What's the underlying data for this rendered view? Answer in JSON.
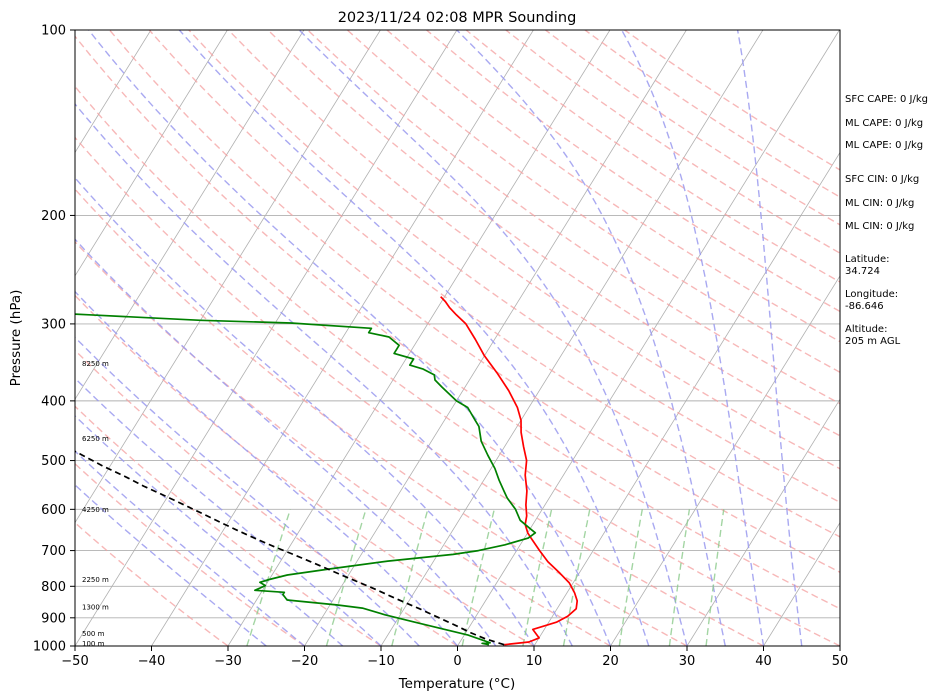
{
  "chart_data": {
    "type": "line",
    "subtype": "skew-t log-p sounding",
    "title": "2023/11/24 02:08 MPR Sounding",
    "xlabel": "Temperature (°C)",
    "ylabel": "Pressure (hPa)",
    "xlim": [
      -50,
      50
    ],
    "ylim": [
      1000,
      100
    ],
    "y_scale": "log",
    "x_ticks": [
      "−50",
      "−40",
      "−30",
      "−20",
      "−10",
      "0",
      "10",
      "20",
      "30",
      "40",
      "50"
    ],
    "y_ticks": [
      {
        "p": 100,
        "label": "100"
      },
      {
        "p": 200,
        "label": "200"
      },
      {
        "p": 300,
        "label": "300"
      },
      {
        "p": 400,
        "label": "400"
      },
      {
        "p": 500,
        "label": "500"
      },
      {
        "p": 600,
        "label": "600"
      },
      {
        "p": 700,
        "label": "700"
      },
      {
        "p": 800,
        "label": "800"
      },
      {
        "p": 900,
        "label": "900"
      },
      {
        "p": 1000,
        "label": "1000"
      }
    ],
    "height_labels": [
      {
        "p": 990,
        "label": "100 m"
      },
      {
        "p": 955,
        "label": "500 m"
      },
      {
        "p": 865,
        "label": "1300 m"
      },
      {
        "p": 780,
        "label": "2250 m"
      },
      {
        "p": 600,
        "label": "4250 m"
      },
      {
        "p": 460,
        "label": "6250 m"
      },
      {
        "p": 348,
        "label": "8250 m"
      }
    ],
    "series": [
      {
        "role": "temperature",
        "color": "#ff0000",
        "points": [
          [
            6,
            995
          ],
          [
            9,
            985
          ],
          [
            10,
            970
          ],
          [
            9,
            950
          ],
          [
            8.5,
            940
          ],
          [
            9.5,
            930
          ],
          [
            11,
            915
          ],
          [
            12,
            895
          ],
          [
            12.5,
            870
          ],
          [
            12,
            845
          ],
          [
            11,
            820
          ],
          [
            9.5,
            790
          ],
          [
            7.5,
            762
          ],
          [
            5,
            730
          ],
          [
            3,
            700
          ],
          [
            1,
            670
          ],
          [
            0,
            655
          ],
          [
            -1,
            635
          ],
          [
            -1.5,
            615
          ],
          [
            -2.5,
            590
          ],
          [
            -3.5,
            560
          ],
          [
            -5,
            528
          ],
          [
            -6,
            500
          ],
          [
            -7.5,
            475
          ],
          [
            -9,
            450
          ],
          [
            -10,
            430
          ],
          [
            -11.5,
            410
          ],
          [
            -14,
            385
          ],
          [
            -17,
            360
          ],
          [
            -20,
            338
          ],
          [
            -22.5,
            318
          ],
          [
            -25,
            300
          ],
          [
            -27,
            290
          ],
          [
            -28.5,
            282
          ],
          [
            -29.5,
            276
          ],
          [
            -30.5,
            271
          ]
        ]
      },
      {
        "role": "dewpoint",
        "color": "#008000",
        "points": [
          [
            4,
            995
          ],
          [
            3,
            990
          ],
          [
            4,
            988
          ],
          [
            3,
            980
          ],
          [
            0.5,
            960
          ],
          [
            -3,
            940
          ],
          [
            -7.5,
            915
          ],
          [
            -12,
            890
          ],
          [
            -15.5,
            868
          ],
          [
            -19,
            858
          ],
          [
            -26,
            842
          ],
          [
            -27,
            825
          ],
          [
            -27,
            818
          ],
          [
            -31,
            812
          ],
          [
            -30,
            798
          ],
          [
            -31,
            788
          ],
          [
            -30,
            780
          ],
          [
            -28,
            767
          ],
          [
            -23,
            750
          ],
          [
            -16,
            728
          ],
          [
            -8,
            710
          ],
          [
            -5,
            700
          ],
          [
            -2,
            685
          ],
          [
            0.5,
            668
          ],
          [
            1,
            655
          ],
          [
            0,
            645
          ],
          [
            -2,
            625
          ],
          [
            -3.5,
            600
          ],
          [
            -5.5,
            575
          ],
          [
            -6.5,
            560
          ],
          [
            -8,
            538
          ],
          [
            -9.5,
            515
          ],
          [
            -11.5,
            490
          ],
          [
            -13.5,
            465
          ],
          [
            -15,
            440
          ],
          [
            -16,
            430
          ],
          [
            -18,
            410
          ],
          [
            -20,
            400
          ],
          [
            -23,
            380
          ],
          [
            -24.5,
            370
          ],
          [
            -25,
            363
          ],
          [
            -27,
            355
          ],
          [
            -29,
            350
          ],
          [
            -29,
            342
          ],
          [
            -32,
            335
          ],
          [
            -32,
            325
          ],
          [
            -34,
            315
          ],
          [
            -37,
            310
          ],
          [
            -37,
            305
          ],
          [
            -48,
            299
          ],
          [
            -60,
            296
          ],
          [
            -75,
            290
          ],
          [
            -80,
            288
          ]
        ]
      },
      {
        "role": "parcel",
        "color": "#000000",
        "points": [
          [
            6,
            995
          ],
          [
            3,
            973
          ],
          [
            0.6,
            951
          ],
          [
            -1.5,
            930
          ],
          [
            -3.6,
            910
          ],
          [
            -5.8,
            890
          ],
          [
            -8,
            870
          ],
          [
            -10.4,
            850
          ],
          [
            -12.8,
            830
          ],
          [
            -15.2,
            810
          ],
          [
            -17.8,
            790
          ],
          [
            -20.5,
            770
          ],
          [
            -23.2,
            750
          ],
          [
            -26,
            730
          ],
          [
            -28.9,
            710
          ],
          [
            -32,
            690
          ],
          [
            -35,
            670
          ],
          [
            -38,
            650
          ],
          [
            -41,
            630
          ],
          [
            -44,
            610
          ],
          [
            -47.2,
            590
          ],
          [
            -50.5,
            570
          ],
          [
            -54,
            550
          ],
          [
            -57.3,
            530
          ],
          [
            -61,
            510
          ],
          [
            -64.5,
            490
          ],
          [
            -68.2,
            470
          ],
          [
            -72,
            450
          ],
          [
            -75.5,
            430
          ],
          [
            -79.5,
            410
          ],
          [
            -83.5,
            390
          ],
          [
            -87.5,
            370
          ],
          [
            -91.5,
            350
          ],
          [
            -95.5,
            330
          ],
          [
            -99.5,
            312
          ],
          [
            -103.5,
            295
          ],
          [
            -107,
            282
          ],
          [
            -110,
            270
          ],
          [
            -113,
            258
          ]
        ]
      }
    ],
    "indices": [
      {
        "label": "SFC CAPE: 0 J/kg"
      },
      {
        "label": "ML CAPE: 0 J/kg"
      },
      {
        "label": "ML CAPE: 0 J/kg"
      },
      {
        "label": "SFC CIN: 0 J/kg"
      },
      {
        "label": "ML CIN: 0 J/kg"
      },
      {
        "label": "ML CIN: 0 J/kg"
      }
    ],
    "location": {
      "latitude_label": "Latitude:",
      "latitude": "34.724",
      "longitude_label": "Longitude:",
      "longitude": "-86.646",
      "altitude_label": "Altitude:",
      "altitude": "205 m AGL"
    },
    "colors": {
      "isotherm": "#b0b0b0",
      "isobar": "#b0b0b0",
      "dry_adiabat": "#f4a0a0",
      "moist_adiabat": "#9a9aee",
      "mixing_ratio": "#8ccb8c"
    }
  }
}
